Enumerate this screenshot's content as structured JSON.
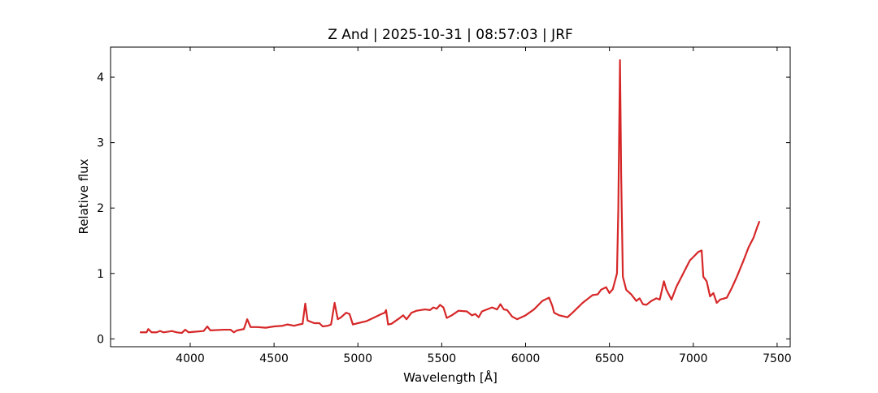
{
  "chart_data": {
    "type": "line",
    "title": "Z And | 2025-10-31 | 08:57:03 | JRF",
    "x_label": "Wavelength [Å]",
    "y_label": "Relative flux",
    "color": "#d62728",
    "x": [
      3700,
      3740,
      3750,
      3770,
      3800,
      3820,
      3840,
      3870,
      3890,
      3920,
      3950,
      3970,
      3990,
      4030,
      4080,
      4102,
      4120,
      4200,
      4240,
      4260,
      4280,
      4320,
      4340,
      4360,
      4400,
      4450,
      4500,
      4550,
      4580,
      4620,
      4650,
      4670,
      4686,
      4700,
      4740,
      4770,
      4790,
      4820,
      4840,
      4861,
      4880,
      4900,
      4930,
      4950,
      4970,
      5000,
      5050,
      5100,
      5140,
      5160,
      5168,
      5180,
      5200,
      5250,
      5270,
      5290,
      5320,
      5350,
      5400,
      5430,
      5450,
      5470,
      5490,
      5510,
      5530,
      5560,
      5600,
      5650,
      5680,
      5700,
      5720,
      5740,
      5780,
      5800,
      5830,
      5850,
      5870,
      5890,
      5920,
      5950,
      6000,
      6050,
      6100,
      6140,
      6160,
      6170,
      6200,
      6250,
      6280,
      6300,
      6340,
      6380,
      6400,
      6430,
      6450,
      6480,
      6500,
      6520,
      6545,
      6553,
      6563,
      6570,
      6580,
      6600,
      6630,
      6660,
      6680,
      6700,
      6720,
      6750,
      6780,
      6800,
      6825,
      6840,
      6870,
      6900,
      6920,
      6950,
      6980,
      7000,
      7030,
      7050,
      7060,
      7080,
      7100,
      7120,
      7140,
      7160,
      7200,
      7230,
      7260,
      7300,
      7330,
      7360,
      7380,
      7395
    ],
    "values": [
      0.1,
      0.1,
      0.15,
      0.1,
      0.1,
      0.12,
      0.1,
      0.11,
      0.12,
      0.1,
      0.09,
      0.14,
      0.1,
      0.11,
      0.12,
      0.19,
      0.13,
      0.14,
      0.14,
      0.1,
      0.13,
      0.15,
      0.3,
      0.18,
      0.18,
      0.17,
      0.19,
      0.2,
      0.22,
      0.2,
      0.22,
      0.23,
      0.54,
      0.28,
      0.24,
      0.24,
      0.19,
      0.2,
      0.22,
      0.55,
      0.3,
      0.33,
      0.4,
      0.38,
      0.22,
      0.24,
      0.27,
      0.33,
      0.38,
      0.4,
      0.44,
      0.22,
      0.23,
      0.32,
      0.36,
      0.3,
      0.4,
      0.43,
      0.45,
      0.44,
      0.48,
      0.46,
      0.52,
      0.48,
      0.32,
      0.36,
      0.43,
      0.42,
      0.36,
      0.38,
      0.33,
      0.42,
      0.46,
      0.48,
      0.45,
      0.53,
      0.45,
      0.44,
      0.34,
      0.3,
      0.36,
      0.45,
      0.58,
      0.63,
      0.5,
      0.4,
      0.36,
      0.33,
      0.4,
      0.45,
      0.55,
      0.63,
      0.67,
      0.68,
      0.75,
      0.79,
      0.7,
      0.76,
      1.0,
      2.0,
      4.26,
      2.5,
      0.95,
      0.75,
      0.68,
      0.58,
      0.62,
      0.53,
      0.52,
      0.58,
      0.62,
      0.6,
      0.88,
      0.75,
      0.6,
      0.8,
      0.9,
      1.05,
      1.2,
      1.25,
      1.33,
      1.35,
      0.95,
      0.88,
      0.65,
      0.7,
      0.55,
      0.6,
      0.63,
      0.78,
      0.95,
      1.2,
      1.4,
      1.55,
      1.7,
      1.8
    ],
    "xlim": [
      3525,
      7578
    ],
    "ylim": [
      -0.12,
      4.46
    ],
    "xticks": [
      4000,
      4500,
      5000,
      5500,
      6000,
      6500,
      7000,
      7500
    ],
    "yticks": [
      0,
      1,
      2,
      3,
      4
    ]
  }
}
